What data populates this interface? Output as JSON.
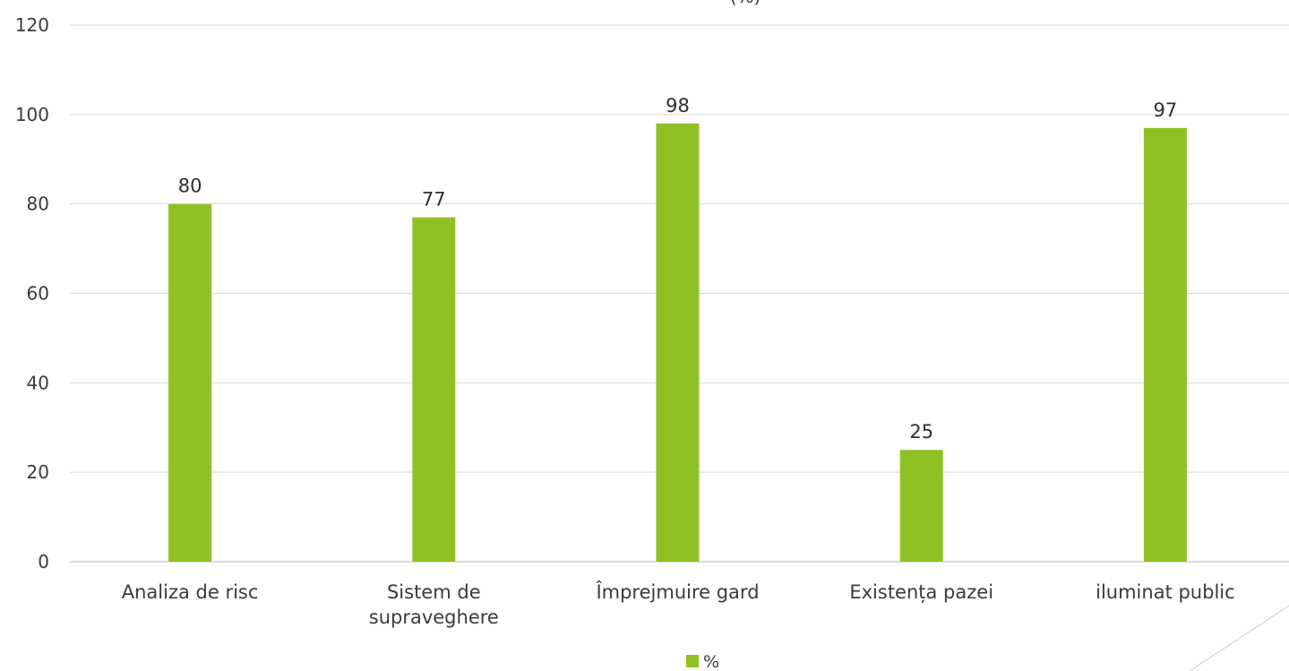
{
  "chart_data": {
    "type": "bar",
    "title": "(%)",
    "categories": [
      "Analiza de risc",
      "Sistem de supraveghere",
      "Împrejmuire gard",
      "Existența pazei",
      "iluminat public"
    ],
    "series": [
      {
        "name": "%",
        "values": [
          80,
          77,
          98,
          25,
          97
        ],
        "color": "#8fc124"
      }
    ],
    "ylim": [
      0,
      120
    ],
    "yticks": [
      0,
      20,
      40,
      60,
      80,
      100,
      120
    ],
    "grid": true,
    "data_labels": true,
    "legend_position": "bottom"
  },
  "colors": {
    "bar": "#8fc124",
    "grid": "#d9d9d9",
    "text": "#3a3a3a"
  }
}
